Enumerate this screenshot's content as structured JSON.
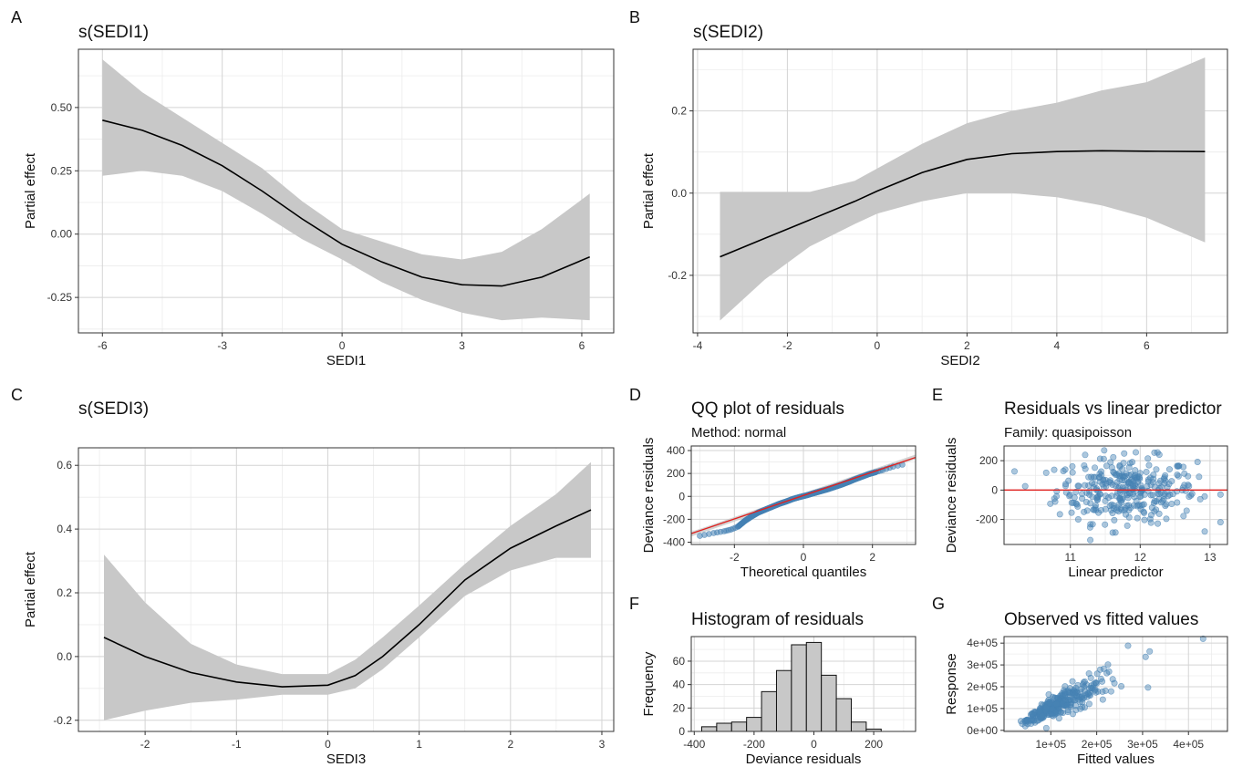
{
  "chart_data": [
    {
      "panel": "A",
      "type": "line",
      "title": "s(SEDI1)",
      "xlabel": "SEDI1",
      "ylabel": "Partial effect",
      "xlim": [
        -6.6,
        6.8
      ],
      "ylim": [
        -0.39,
        0.73
      ],
      "xticks": [
        -6,
        -3,
        0,
        3,
        6
      ],
      "yticks": [
        -0.25,
        0.0,
        0.25,
        0.5
      ],
      "ytick_labels": [
        "-0.25",
        "0.00",
        "0.25",
        "0.50"
      ],
      "x": [
        -6,
        -5,
        -4,
        -3,
        -2,
        -1,
        0,
        1,
        2,
        3,
        4,
        5,
        6.2
      ],
      "y": [
        0.45,
        0.41,
        0.35,
        0.27,
        0.17,
        0.06,
        -0.04,
        -0.11,
        -0.17,
        -0.2,
        -0.205,
        -0.17,
        -0.09
      ],
      "lower": [
        0.23,
        0.25,
        0.23,
        0.17,
        0.08,
        -0.02,
        -0.1,
        -0.19,
        -0.26,
        -0.31,
        -0.34,
        -0.33,
        -0.34
      ],
      "upper": [
        0.69,
        0.56,
        0.46,
        0.36,
        0.26,
        0.13,
        0.02,
        -0.03,
        -0.08,
        -0.1,
        -0.07,
        0.02,
        0.16
      ],
      "grid": true
    },
    {
      "panel": "B",
      "type": "line",
      "title": "s(SEDI2)",
      "xlabel": "SEDI2",
      "ylabel": "Partial effect",
      "xlim": [
        -4.1,
        7.8
      ],
      "ylim": [
        -0.34,
        0.35
      ],
      "xticks": [
        -4,
        -2,
        0,
        2,
        4,
        6
      ],
      "yticks": [
        -0.2,
        0.0,
        0.2
      ],
      "ytick_labels": [
        "-0.2",
        "0.0",
        "0.2"
      ],
      "x": [
        -3.5,
        -2.5,
        -1.5,
        -0.5,
        0,
        1,
        2,
        3,
        4,
        5,
        6,
        7.3
      ],
      "y": [
        -0.155,
        -0.11,
        -0.065,
        -0.02,
        0.005,
        0.05,
        0.082,
        0.096,
        0.101,
        0.103,
        0.102,
        0.101
      ],
      "lower": [
        -0.31,
        -0.21,
        -0.13,
        -0.075,
        -0.05,
        -0.02,
        0.0,
        0.0,
        -0.01,
        -0.03,
        -0.06,
        -0.12
      ],
      "upper": [
        0.003,
        0.003,
        0.003,
        0.03,
        0.06,
        0.12,
        0.17,
        0.2,
        0.22,
        0.25,
        0.27,
        0.33
      ],
      "grid": true
    },
    {
      "panel": "C",
      "type": "line",
      "title": "s(SEDI3)",
      "xlabel": "SEDI3",
      "ylabel": "Partial effect",
      "xlim": [
        -2.73,
        3.13
      ],
      "ylim": [
        -0.235,
        0.655
      ],
      "xticks": [
        -2,
        -1,
        0,
        1,
        2,
        3
      ],
      "yticks": [
        -0.2,
        0.0,
        0.2,
        0.4,
        0.6
      ],
      "ytick_labels": [
        "-0.2",
        "0.0",
        "0.2",
        "0.4",
        "0.6"
      ],
      "x": [
        -2.45,
        -2,
        -1.5,
        -1,
        -0.5,
        0,
        0.3,
        0.6,
        1,
        1.5,
        2,
        2.5,
        2.88
      ],
      "y": [
        0.06,
        0.0,
        -0.05,
        -0.08,
        -0.095,
        -0.09,
        -0.06,
        0.0,
        0.1,
        0.24,
        0.34,
        0.41,
        0.46
      ],
      "lower": [
        -0.2,
        -0.17,
        -0.145,
        -0.135,
        -0.12,
        -0.12,
        -0.1,
        -0.04,
        0.06,
        0.19,
        0.27,
        0.31,
        0.31
      ],
      "upper": [
        0.32,
        0.17,
        0.04,
        -0.025,
        -0.055,
        -0.055,
        -0.01,
        0.06,
        0.16,
        0.29,
        0.41,
        0.51,
        0.61
      ],
      "grid": true
    },
    {
      "panel": "D",
      "type": "scatter",
      "title": "QQ plot of residuals",
      "subtitle": "Method: normal",
      "xlabel": "Theoretical quantiles",
      "ylabel": "Deviance residuals",
      "xlim": [
        -3.25,
        3.25
      ],
      "ylim": [
        -420,
        440
      ],
      "xticks": [
        -2,
        0,
        2
      ],
      "yticks": [
        -400,
        -200,
        0,
        200,
        400
      ],
      "ref_line": {
        "color": "#e0211f",
        "from": [
          -3.3,
          -330
        ],
        "to": [
          3.3,
          345
        ]
      },
      "ref_band_half_width": 20,
      "points_desc": "sample quantiles vs theoretical normal quantiles",
      "qq_x": [
        -3.0,
        -2.6,
        -2.3,
        -2.1,
        -1.9,
        -1.7,
        -1.5,
        -1.3,
        -1.1,
        -0.9,
        -0.7,
        -0.5,
        -0.3,
        -0.1,
        0.1,
        0.3,
        0.5,
        0.7,
        0.9,
        1.1,
        1.3,
        1.5,
        1.7,
        1.9,
        2.1,
        2.3,
        2.6,
        3.0
      ],
      "qq_y": [
        -345,
        -320,
        -305,
        -290,
        -265,
        -215,
        -175,
        -140,
        -115,
        -90,
        -65,
        -45,
        -22,
        -5,
        10,
        28,
        45,
        62,
        82,
        102,
        125,
        150,
        172,
        195,
        212,
        230,
        260,
        285
      ],
      "grid": true
    },
    {
      "panel": "E",
      "type": "scatter",
      "title": "Residuals vs linear predictor",
      "subtitle": "Family: quasipoisson",
      "xlabel": "Linear predictor",
      "ylabel": "Deviance residuals",
      "xlim": [
        10.05,
        13.25
      ],
      "ylim": [
        -370,
        300
      ],
      "xticks": [
        11,
        12,
        13
      ],
      "yticks": [
        -200,
        0,
        200
      ],
      "hline": {
        "y": 0,
        "color": "#e0211f"
      },
      "grid": true
    },
    {
      "panel": "F",
      "type": "bar",
      "title": "Histogram of residuals",
      "xlabel": "Deviance residuals",
      "ylabel": "Frequency",
      "xlim": [
        -410,
        340
      ],
      "ylim": [
        0,
        81
      ],
      "xticks": [
        -400,
        -200,
        0,
        200
      ],
      "yticks": [
        0,
        20,
        40,
        60
      ],
      "bin_width": 50,
      "bin_start": -375,
      "values": [
        4,
        7,
        8,
        12,
        34,
        52,
        74,
        76,
        48,
        28,
        8,
        2
      ],
      "grid": true
    },
    {
      "panel": "G",
      "type": "scatter",
      "title": "Observed vs fitted values",
      "xlabel": "Fitted values",
      "ylabel": "Response",
      "xlim": [
        -2000,
        485000
      ],
      "ylim": [
        -5000,
        430000
      ],
      "xticks": [
        100000,
        200000,
        300000,
        400000
      ],
      "xtick_labels": [
        "1e+05",
        "2e+05",
        "3e+05",
        "4e+05"
      ],
      "yticks": [
        0,
        100000,
        200000,
        300000,
        400000
      ],
      "ytick_labels": [
        "0e+00",
        "1e+05",
        "2e+05",
        "3e+05",
        "4e+05"
      ],
      "grid": true
    }
  ],
  "colors": {
    "line": "#000000",
    "band": "#c8c8c8",
    "point": "#4682b4",
    "ref": "#e0211f",
    "grid_major": "#d4d4d4",
    "grid_minor": "#ececec",
    "frame": "#333333",
    "bar_fill": "#c8c8c8"
  }
}
